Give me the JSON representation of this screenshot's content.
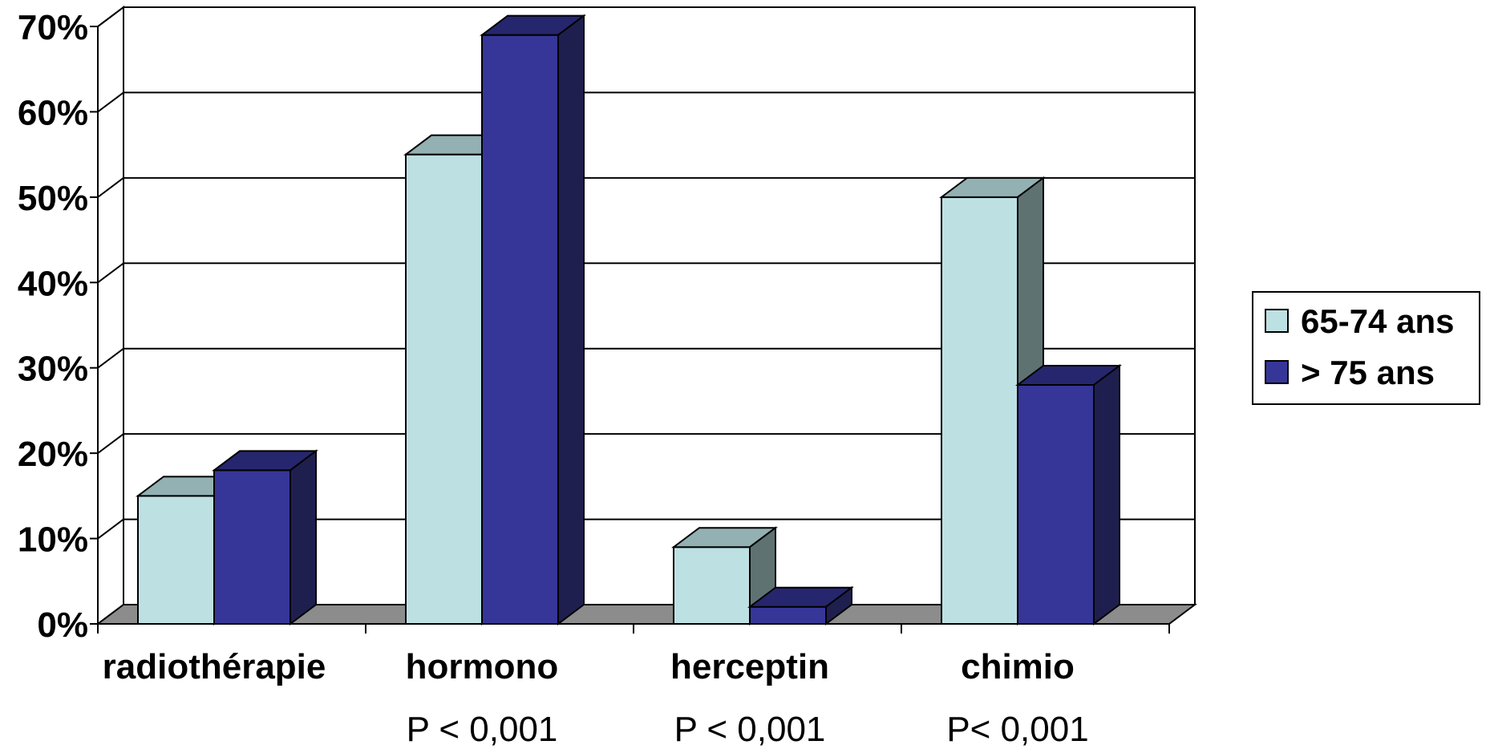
{
  "chart_data": {
    "type": "bar",
    "style": "3d-clustered-column",
    "categories": [
      "radiothérapie",
      "hormono",
      "herceptin",
      "chimio"
    ],
    "annotations": [
      "",
      "P < 0,001",
      "P < 0,001",
      "P< 0,001"
    ],
    "series": [
      {
        "name": "65-74 ans",
        "values": [
          15,
          55,
          9,
          50
        ],
        "color": "#bde0e3",
        "top_color": "#93b0b2",
        "side_color": "#5f7272"
      },
      {
        "name": "> 75 ans",
        "values": [
          18,
          69,
          2,
          28
        ],
        "color": "#363699",
        "top_color": "#26266e",
        "side_color": "#1f1f4f"
      }
    ],
    "ylim": [
      0,
      70
    ],
    "yticks": [
      "0%",
      "10%",
      "20%",
      "30%",
      "40%",
      "50%",
      "60%",
      "70%"
    ],
    "grid": true,
    "legend": "right",
    "floor_color": "#8c8c8c"
  }
}
